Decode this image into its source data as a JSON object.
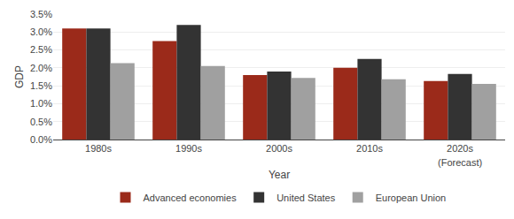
{
  "chart_data": {
    "type": "bar",
    "categories": [
      "1980s",
      "1990s",
      "2000s",
      "2010s",
      "2020s"
    ],
    "series": [
      {
        "name": "Advanced economies",
        "color": "#9b2a1a",
        "values": [
          0.031,
          0.0275,
          0.018,
          0.02,
          0.0163
        ]
      },
      {
        "name": "United States",
        "color": "#333333",
        "values": [
          0.031,
          0.032,
          0.019,
          0.0225,
          0.0183
        ]
      },
      {
        "name": "European Union",
        "color": "#a0a0a0",
        "values": [
          0.0213,
          0.0205,
          0.0172,
          0.0168,
          0.0155
        ]
      }
    ],
    "xlabel": "Year",
    "ylabel": "GDP",
    "ylim": [
      0,
      0.035
    ],
    "yticks": [
      {
        "value": 0.0,
        "label": "0.0%"
      },
      {
        "value": 0.005,
        "label": "0.5%"
      },
      {
        "value": 0.01,
        "label": "1.0%"
      },
      {
        "value": 0.015,
        "label": "1.5%"
      },
      {
        "value": 0.02,
        "label": "2.0%"
      },
      {
        "value": 0.025,
        "label": "2.5%"
      },
      {
        "value": 0.03,
        "label": "3.0%"
      },
      {
        "value": 0.035,
        "label": "3.5%"
      }
    ],
    "grid": true,
    "legend": "bottom",
    "annotations": [
      {
        "text": "(Forecast)",
        "category": "2020s"
      }
    ]
  }
}
